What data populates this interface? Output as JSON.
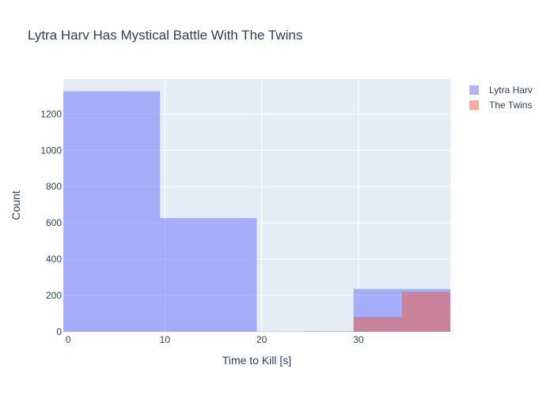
{
  "chart_data": {
    "type": "histogram",
    "title": "Lytra Harv Has Mystical Battle With The Twins",
    "xlabel": "Time to Kill [s]",
    "ylabel": "Count",
    "xlim": [
      -0.5,
      39.5
    ],
    "ylim": [
      0,
      1393
    ],
    "x_ticks": [
      0,
      10,
      20,
      30
    ],
    "y_ticks": [
      0,
      200,
      400,
      600,
      800,
      1000,
      1200
    ],
    "grid": true,
    "legend_position": "top-right",
    "background": "#e5ecf6",
    "series": [
      {
        "name": "Lytra Harv",
        "color": "#636efa",
        "opacity": 0.5,
        "bins": [
          {
            "x0": -0.5,
            "x1": 9.5,
            "count": 1325
          },
          {
            "x0": 9.5,
            "x1": 19.5,
            "count": 627
          },
          {
            "x0": 19.5,
            "x1": 29.5,
            "count": 2
          },
          {
            "x0": 29.5,
            "x1": 39.5,
            "count": 236
          }
        ]
      },
      {
        "name": "The Twins",
        "color": "#ef553b",
        "opacity": 0.5,
        "bins": [
          {
            "x0": 24.5,
            "x1": 29.5,
            "count": 3
          },
          {
            "x0": 29.5,
            "x1": 34.5,
            "count": 82
          },
          {
            "x0": 34.5,
            "x1": 39.5,
            "count": 220
          }
        ]
      }
    ]
  }
}
